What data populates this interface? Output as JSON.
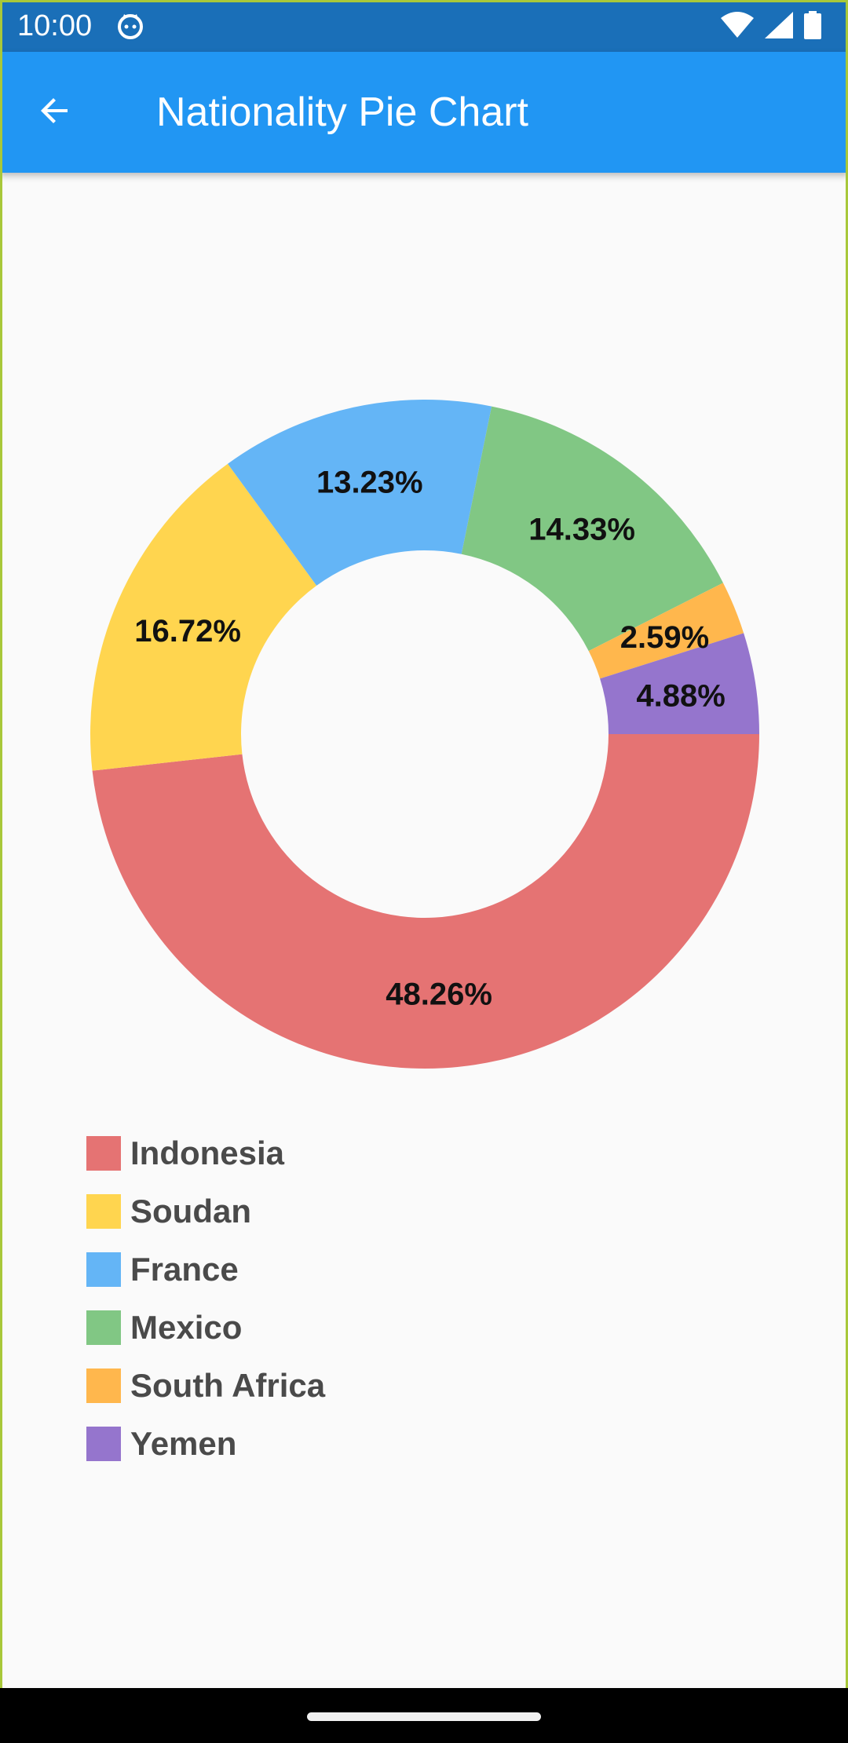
{
  "status_bar": {
    "time": "10:00",
    "icons": [
      "cat-notification-icon",
      "wifi-icon",
      "signal-icon",
      "battery-icon"
    ]
  },
  "app_bar": {
    "title": "Nationality Pie Chart",
    "back_icon": "arrow-back-icon",
    "background": "#2196f3"
  },
  "chart_data": {
    "type": "pie",
    "donut": true,
    "categories": [
      "Indonesia",
      "Soudan",
      "France",
      "Mexico",
      "South Africa",
      "Yemen"
    ],
    "values": [
      48.26,
      16.72,
      13.23,
      14.33,
      2.59,
      4.88
    ],
    "labels": [
      "48.26%",
      "16.72%",
      "13.23%",
      "14.33%",
      "2.59%",
      "4.88%"
    ],
    "colors": [
      "#e57373",
      "#ffd54f",
      "#64b5f6",
      "#81c784",
      "#ffb74d",
      "#9575cd"
    ],
    "legend_position": "bottom-left"
  }
}
